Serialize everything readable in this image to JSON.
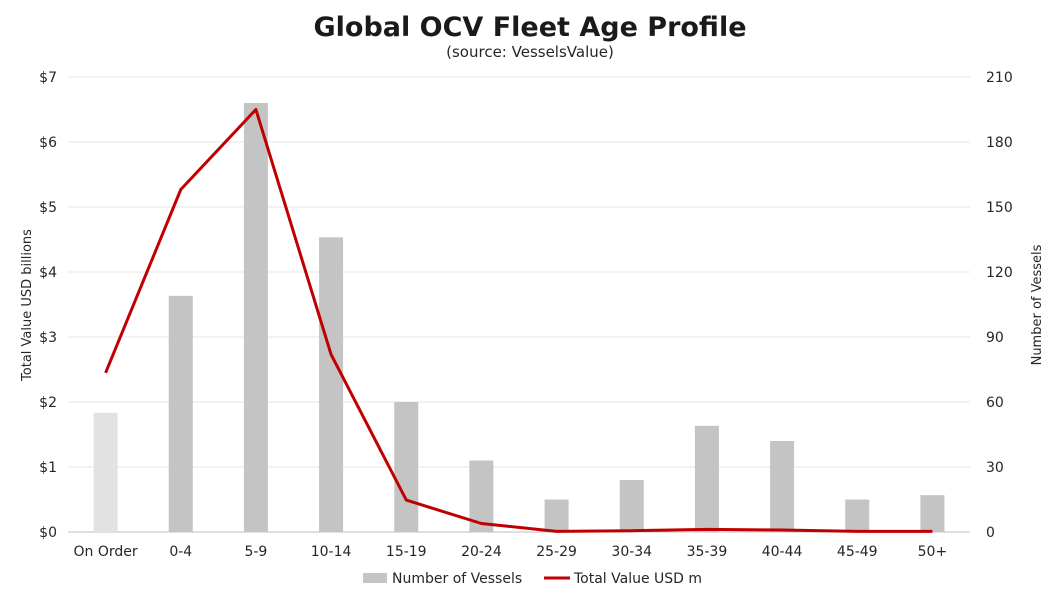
{
  "chart_data": {
    "type": "bar",
    "title": "Global OCV Fleet Age Profile",
    "subtitle": "(source: VesselsValue)",
    "categories": [
      "On Order",
      "0-4",
      "5-9",
      "10-14",
      "15-19",
      "20-24",
      "25-29",
      "30-34",
      "35-39",
      "40-44",
      "45-49",
      "50+"
    ],
    "y_left": {
      "label": "Total Value USD billions",
      "range": [
        0,
        7
      ],
      "ticks": [
        0,
        1,
        2,
        3,
        4,
        5,
        6,
        7
      ],
      "tick_labels": [
        "$0",
        "$1",
        "$2",
        "$3",
        "$4",
        "$5",
        "$6",
        "$7"
      ]
    },
    "y_right": {
      "label": "Number of Vessels",
      "range": [
        0,
        210
      ],
      "ticks": [
        0,
        30,
        60,
        90,
        120,
        150,
        180,
        210
      ],
      "tick_labels": [
        "0",
        "30",
        "60",
        "90",
        "120",
        "150",
        "180",
        "210"
      ]
    },
    "grid": "horizontal",
    "legend_position": "bottom",
    "series": [
      {
        "name": "Number of Vessels",
        "type": "bar",
        "axis": "right",
        "color": "#c4c4c4",
        "highlight_color": "#e2e2e2",
        "highlight_index": 0,
        "values": [
          55,
          109,
          198,
          136,
          60,
          33,
          15,
          24,
          49,
          42,
          15,
          17
        ]
      },
      {
        "name": "Total Value USD m",
        "type": "line",
        "axis": "left",
        "color": "#c00000",
        "values": [
          2.45,
          5.27,
          6.5,
          2.73,
          0.49,
          0.13,
          0.01,
          0.02,
          0.04,
          0.03,
          0.01,
          0.01
        ]
      }
    ]
  }
}
